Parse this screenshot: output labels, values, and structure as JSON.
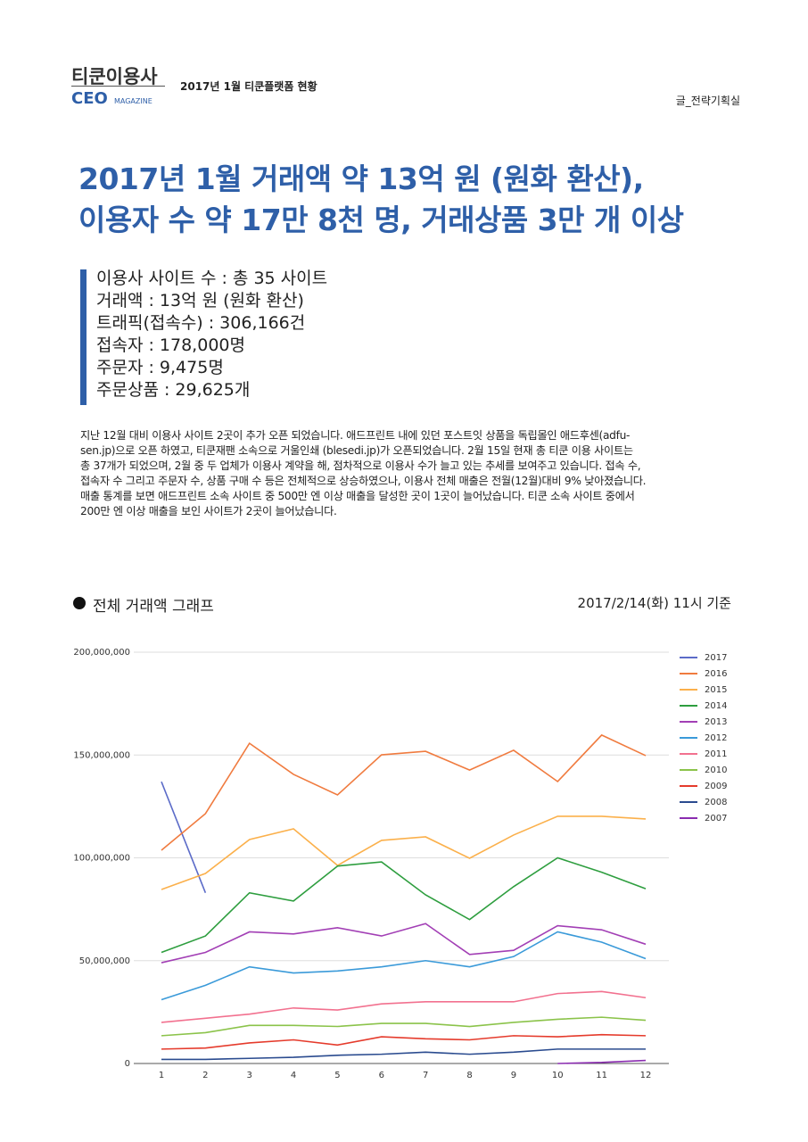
{
  "header": {
    "logo": "티쿤이용사",
    "brand": "CEO",
    "brand_sub": "MAGAZINE",
    "issue": "2017년 1월 티쿤플랫폼 현황",
    "author": "글_전략기획실"
  },
  "headline": [
    "2017년 1월 거래액 약 13억 원 (원화 환산),",
    "이용자 수 약 17만 8천 명, 거래상품 3만 개 이상"
  ],
  "stats": [
    "이용사 사이트 수 : 총 35 사이트",
    "거래액 : 13억 원 (원화 환산)",
    "트래픽(접속수) : 306,166건",
    "접속자 : 178,000명",
    "주문자 : 9,475명",
    "주문상품 : 29,625개"
  ],
  "body": [
    "지난 12월 대비 이용사 사이트 2곳이 추가 오픈 되었습니다. 애드프린트 내에 있던  포스트잇 상품을 독립몰인 애드후센(adfu-",
    "sen.jp)으로 오픈 하였고, 티쿤재팬 소속으로 거울인쇄 (blesedi.jp)가 오픈되었습니다. 2월 15일 현재 총 티쿤 이용 사이트는",
    "총 37개가 되었으며, 2월 중 두 업체가 이용사 계약을 해, 점차적으로 이용사 수가 늘고 있는 추세를 보여주고 있습니다. 접속 수,",
    "접속자 수 그리고 주문자 수, 상품 구매 수 등은 전체적으로 상승하였으나, 이용사 전체 매출은 전월(12월)대비 9% 낮아졌습니다.",
    "매출 통계를 보면 애드프린트 소속 사이트 중 500만 엔 이상 매출을 달성한 곳이 1곳이 늘어났습니다. 티쿤 소속 사이트 중에서",
    "200만 엔 이상 매출을 보인 사이트가 2곳이 늘어났습니다."
  ],
  "chart_section": {
    "title": "전체 거래액 그래프",
    "note": "2017/2/14(화) 11시 기준"
  },
  "chart_data": {
    "type": "line",
    "categories": [
      "1",
      "2",
      "3",
      "4",
      "5",
      "6",
      "7",
      "8",
      "9",
      "10",
      "11",
      "12"
    ],
    "ylim": [
      0,
      200000000
    ],
    "yticks": [
      0,
      {
        "value": 50000000,
        "label": "50,000,000"
      },
      {
        "value": 100000000,
        "label": "100,000,000"
      },
      {
        "value": 150000000,
        "label": "150,000,000"
      },
      {
        "value": 200000000,
        "label": "200,000,000"
      }
    ],
    "grid": true,
    "legend": "right",
    "series": [
      {
        "name": "2017",
        "color": "#5b6bc8",
        "values": [
          137000000,
          83000000,
          null,
          null,
          null,
          null,
          null,
          null,
          null,
          null,
          null,
          null
        ]
      },
      {
        "name": "2016",
        "color": "#f07b3f",
        "values": [
          103700000,
          121500000,
          155700000,
          140600000,
          130600000,
          150100000,
          151800000,
          142700000,
          152300000,
          137100000,
          159700000,
          149700000
        ]
      },
      {
        "name": "2015",
        "color": "#fbb04b",
        "values": [
          84600000,
          92400000,
          108900000,
          114100000,
          96300000,
          108500000,
          110200000,
          99800000,
          111100000,
          120200000,
          120200000,
          118900000
        ]
      },
      {
        "name": "2014",
        "color": "#2e9e3f",
        "values": [
          54000000,
          62000000,
          83000000,
          79000000,
          96000000,
          98000000,
          82000000,
          70000000,
          86000000,
          100000000,
          93000000,
          85000000
        ]
      },
      {
        "name": "2013",
        "color": "#a23fb5",
        "values": [
          49000000,
          54000000,
          64000000,
          63000000,
          66000000,
          62000000,
          68000000,
          53000000,
          55000000,
          67000000,
          65000000,
          58000000
        ]
      },
      {
        "name": "2012",
        "color": "#3a9ad9",
        "values": [
          31000000,
          38000000,
          47000000,
          44000000,
          45000000,
          47000000,
          50000000,
          47000000,
          52000000,
          64000000,
          59000000,
          51000000
        ]
      },
      {
        "name": "2011",
        "color": "#f2718f",
        "values": [
          20000000,
          22000000,
          24000000,
          27000000,
          26000000,
          29000000,
          30000000,
          30000000,
          30000000,
          34000000,
          35000000,
          32000000
        ]
      },
      {
        "name": "2010",
        "color": "#8bc34a",
        "values": [
          13500000,
          15000000,
          18500000,
          18500000,
          18000000,
          19500000,
          19500000,
          18000000,
          20000000,
          21500000,
          22500000,
          21000000
        ]
      },
      {
        "name": "2009",
        "color": "#e53b2c",
        "values": [
          7000000,
          7500000,
          10000000,
          11500000,
          9000000,
          13000000,
          12000000,
          11500000,
          13500000,
          13000000,
          14000000,
          13500000
        ]
      },
      {
        "name": "2008",
        "color": "#2a4b8f",
        "values": [
          2000000,
          2000000,
          2500000,
          3000000,
          4000000,
          4500000,
          5500000,
          4500000,
          5500000,
          7000000,
          7000000,
          7000000
        ]
      },
      {
        "name": "2007",
        "color": "#8a2cb0",
        "values": [
          null,
          null,
          null,
          null,
          null,
          null,
          null,
          null,
          null,
          0,
          500000,
          1500000
        ]
      }
    ]
  }
}
